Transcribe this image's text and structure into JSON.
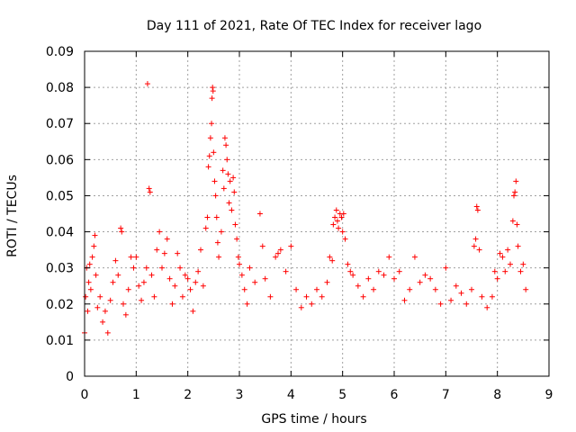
{
  "chart_data": {
    "type": "scatter",
    "title": "Day 111 of 2021, Rate Of TEC Index for receiver lago",
    "xlabel": "GPS time / hours",
    "ylabel": "ROTI / TECUs",
    "xlim": [
      0,
      9
    ],
    "ylim": [
      0,
      0.09
    ],
    "grid": true,
    "marker": "+",
    "color": "#ff0000",
    "x_ticks": [
      0,
      1,
      2,
      3,
      4,
      5,
      6,
      7,
      8,
      9
    ],
    "x_tick_labels": [
      "0",
      "1",
      "2",
      "3",
      "4",
      "5",
      "6",
      "7",
      "8",
      "9"
    ],
    "y_ticks": [
      0,
      0.01,
      0.02,
      0.03,
      0.04,
      0.05,
      0.06,
      0.07,
      0.08,
      0.09
    ],
    "y_tick_labels": [
      "0",
      "0.01",
      "0.02",
      "0.03",
      "0.04",
      "0.05",
      "0.06",
      "0.07",
      "0.08",
      "0.09"
    ],
    "series": [
      {
        "name": "ROTI",
        "points": [
          [
            0.0,
            0.012
          ],
          [
            0.02,
            0.022
          ],
          [
            0.04,
            0.03
          ],
          [
            0.06,
            0.018
          ],
          [
            0.08,
            0.026
          ],
          [
            0.1,
            0.031
          ],
          [
            0.12,
            0.024
          ],
          [
            0.15,
            0.033
          ],
          [
            0.18,
            0.036
          ],
          [
            0.2,
            0.039
          ],
          [
            0.22,
            0.028
          ],
          [
            0.25,
            0.019
          ],
          [
            0.3,
            0.022
          ],
          [
            0.35,
            0.015
          ],
          [
            0.4,
            0.018
          ],
          [
            0.45,
            0.012
          ],
          [
            0.5,
            0.021
          ],
          [
            0.55,
            0.026
          ],
          [
            0.6,
            0.032
          ],
          [
            0.65,
            0.028
          ],
          [
            0.7,
            0.041
          ],
          [
            0.72,
            0.04
          ],
          [
            0.75,
            0.02
          ],
          [
            0.8,
            0.017
          ],
          [
            0.85,
            0.024
          ],
          [
            0.9,
            0.033
          ],
          [
            0.95,
            0.03
          ],
          [
            1.0,
            0.033
          ],
          [
            1.05,
            0.025
          ],
          [
            1.1,
            0.021
          ],
          [
            1.15,
            0.026
          ],
          [
            1.2,
            0.03
          ],
          [
            1.22,
            0.081
          ],
          [
            1.25,
            0.052
          ],
          [
            1.27,
            0.051
          ],
          [
            1.3,
            0.028
          ],
          [
            1.35,
            0.022
          ],
          [
            1.4,
            0.035
          ],
          [
            1.45,
            0.04
          ],
          [
            1.5,
            0.03
          ],
          [
            1.55,
            0.034
          ],
          [
            1.6,
            0.038
          ],
          [
            1.65,
            0.027
          ],
          [
            1.7,
            0.02
          ],
          [
            1.75,
            0.025
          ],
          [
            1.8,
            0.034
          ],
          [
            1.85,
            0.03
          ],
          [
            1.9,
            0.022
          ],
          [
            1.95,
            0.028
          ],
          [
            2.0,
            0.027
          ],
          [
            2.05,
            0.024
          ],
          [
            2.1,
            0.018
          ],
          [
            2.15,
            0.026
          ],
          [
            2.2,
            0.029
          ],
          [
            2.25,
            0.035
          ],
          [
            2.3,
            0.025
          ],
          [
            2.35,
            0.041
          ],
          [
            2.38,
            0.044
          ],
          [
            2.4,
            0.058
          ],
          [
            2.42,
            0.061
          ],
          [
            2.44,
            0.066
          ],
          [
            2.46,
            0.07
          ],
          [
            2.47,
            0.077
          ],
          [
            2.48,
            0.08
          ],
          [
            2.49,
            0.079
          ],
          [
            2.5,
            0.062
          ],
          [
            2.52,
            0.054
          ],
          [
            2.54,
            0.05
          ],
          [
            2.56,
            0.044
          ],
          [
            2.58,
            0.037
          ],
          [
            2.6,
            0.033
          ],
          [
            2.65,
            0.04
          ],
          [
            2.68,
            0.057
          ],
          [
            2.7,
            0.052
          ],
          [
            2.72,
            0.066
          ],
          [
            2.74,
            0.064
          ],
          [
            2.76,
            0.06
          ],
          [
            2.78,
            0.056
          ],
          [
            2.8,
            0.048
          ],
          [
            2.82,
            0.054
          ],
          [
            2.85,
            0.046
          ],
          [
            2.88,
            0.055
          ],
          [
            2.9,
            0.051
          ],
          [
            2.92,
            0.042
          ],
          [
            2.95,
            0.038
          ],
          [
            2.98,
            0.033
          ],
          [
            3.0,
            0.031
          ],
          [
            3.05,
            0.028
          ],
          [
            3.1,
            0.024
          ],
          [
            3.15,
            0.02
          ],
          [
            3.2,
            0.03
          ],
          [
            3.3,
            0.026
          ],
          [
            3.4,
            0.045
          ],
          [
            3.45,
            0.036
          ],
          [
            3.5,
            0.027
          ],
          [
            3.6,
            0.022
          ],
          [
            3.7,
            0.033
          ],
          [
            3.75,
            0.034
          ],
          [
            3.8,
            0.035
          ],
          [
            3.9,
            0.029
          ],
          [
            4.0,
            0.036
          ],
          [
            4.1,
            0.024
          ],
          [
            4.2,
            0.019
          ],
          [
            4.3,
            0.022
          ],
          [
            4.4,
            0.02
          ],
          [
            4.5,
            0.024
          ],
          [
            4.6,
            0.022
          ],
          [
            4.7,
            0.026
          ],
          [
            4.75,
            0.033
          ],
          [
            4.8,
            0.032
          ],
          [
            4.82,
            0.042
          ],
          [
            4.85,
            0.044
          ],
          [
            4.88,
            0.046
          ],
          [
            4.9,
            0.043
          ],
          [
            4.92,
            0.041
          ],
          [
            4.95,
            0.045
          ],
          [
            4.98,
            0.044
          ],
          [
            5.0,
            0.04
          ],
          [
            5.02,
            0.045
          ],
          [
            5.05,
            0.038
          ],
          [
            5.1,
            0.031
          ],
          [
            5.15,
            0.029
          ],
          [
            5.2,
            0.028
          ],
          [
            5.3,
            0.025
          ],
          [
            5.4,
            0.022
          ],
          [
            5.5,
            0.027
          ],
          [
            5.6,
            0.024
          ],
          [
            5.7,
            0.029
          ],
          [
            5.8,
            0.028
          ],
          [
            5.9,
            0.033
          ],
          [
            6.0,
            0.027
          ],
          [
            6.1,
            0.029
          ],
          [
            6.2,
            0.021
          ],
          [
            6.3,
            0.024
          ],
          [
            6.4,
            0.033
          ],
          [
            6.5,
            0.026
          ],
          [
            6.6,
            0.028
          ],
          [
            6.7,
            0.027
          ],
          [
            6.8,
            0.024
          ],
          [
            6.9,
            0.02
          ],
          [
            7.0,
            0.03
          ],
          [
            7.1,
            0.021
          ],
          [
            7.2,
            0.025
          ],
          [
            7.3,
            0.023
          ],
          [
            7.4,
            0.02
          ],
          [
            7.5,
            0.024
          ],
          [
            7.55,
            0.036
          ],
          [
            7.58,
            0.038
          ],
          [
            7.6,
            0.047
          ],
          [
            7.62,
            0.046
          ],
          [
            7.65,
            0.035
          ],
          [
            7.7,
            0.022
          ],
          [
            7.8,
            0.019
          ],
          [
            7.9,
            0.022
          ],
          [
            7.95,
            0.029
          ],
          [
            8.0,
            0.027
          ],
          [
            8.05,
            0.034
          ],
          [
            8.1,
            0.033
          ],
          [
            8.15,
            0.029
          ],
          [
            8.2,
            0.035
          ],
          [
            8.25,
            0.031
          ],
          [
            8.3,
            0.043
          ],
          [
            8.32,
            0.05
          ],
          [
            8.34,
            0.051
          ],
          [
            8.36,
            0.054
          ],
          [
            8.38,
            0.042
          ],
          [
            8.4,
            0.036
          ],
          [
            8.45,
            0.029
          ],
          [
            8.5,
            0.031
          ],
          [
            8.55,
            0.024
          ]
        ]
      }
    ]
  }
}
